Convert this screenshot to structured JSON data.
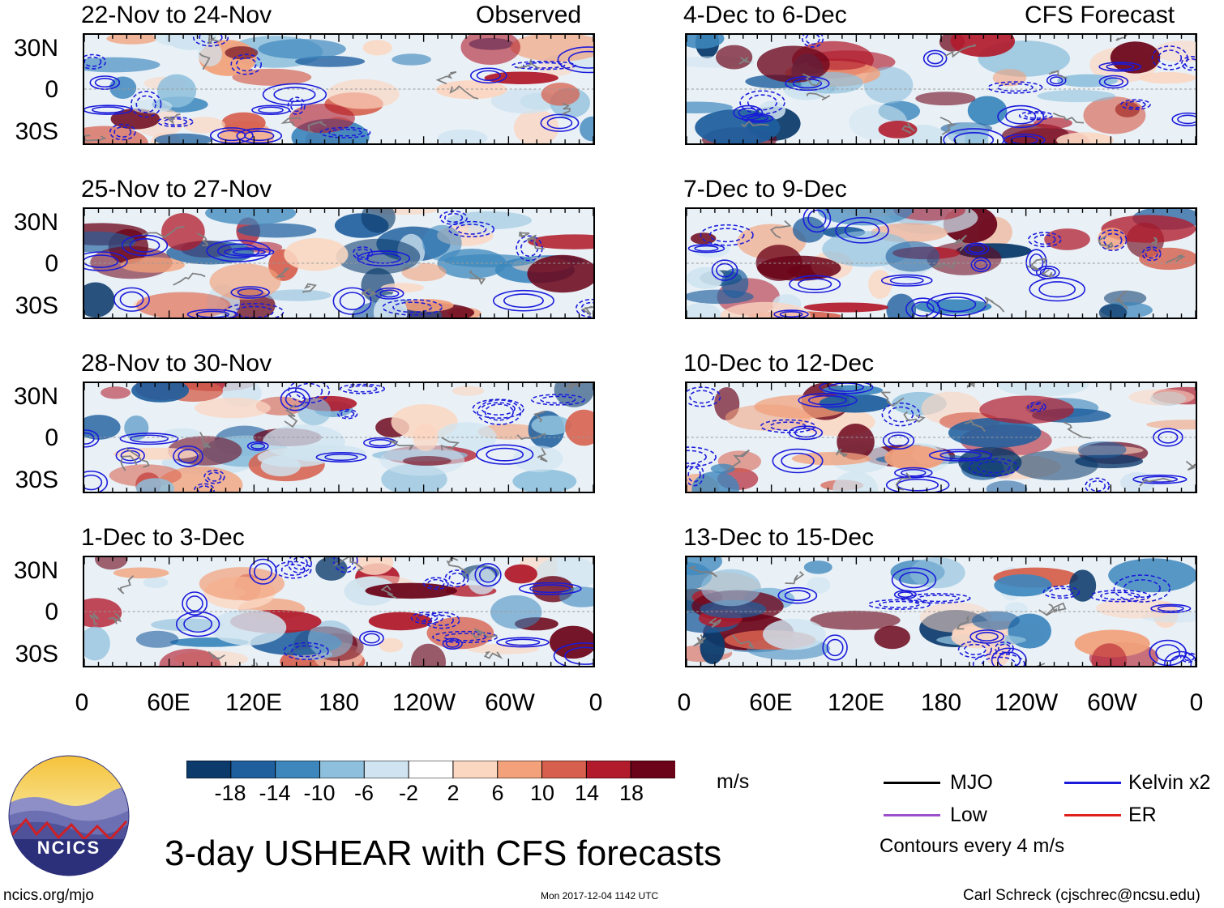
{
  "title": "3-day USHEAR with CFS forecasts",
  "left_column_header": "Observed",
  "right_column_header": "CFS Forecast",
  "panels": {
    "left": [
      "22-Nov to 24-Nov",
      "25-Nov to 27-Nov",
      "28-Nov to 30-Nov",
      "1-Dec to 3-Dec"
    ],
    "right": [
      "4-Dec to 6-Dec",
      "7-Dec to 9-Dec",
      "10-Dec to 12-Dec",
      "13-Dec to 15-Dec"
    ]
  },
  "lat_labels": [
    "30N",
    "0",
    "30S"
  ],
  "lon_labels": [
    "0",
    "60E",
    "120E",
    "180",
    "120W",
    "60W",
    "0"
  ],
  "colorbar": {
    "units": "m/s",
    "tick_labels": [
      "-18",
      "-14",
      "-10",
      "-6",
      "-2",
      "2",
      "6",
      "10",
      "14",
      "18"
    ],
    "colors": [
      "#0b3a6b",
      "#1f5f9e",
      "#3d87bd",
      "#8ebfdc",
      "#cfe4f0",
      "#ffffff",
      "#fbd6c1",
      "#f2a17b",
      "#d6604d",
      "#b11b2c",
      "#6b0419"
    ]
  },
  "legend": {
    "items": [
      {
        "label": "MJO",
        "color": "#000000"
      },
      {
        "label": "Kelvin x2",
        "color": "#1a1adb"
      },
      {
        "label": "Low",
        "color": "#9b4fc9"
      },
      {
        "label": "ER",
        "color": "#e0201c"
      }
    ],
    "note": "Contours every 4 m/s"
  },
  "footer": {
    "website": "ncics.org/mjo",
    "timestamp": "Mon 2017-12-04 1142 UTC",
    "author": "Carl Schreck (cjschrec@ncsu.edu)"
  },
  "logo_text": "NCICS"
}
